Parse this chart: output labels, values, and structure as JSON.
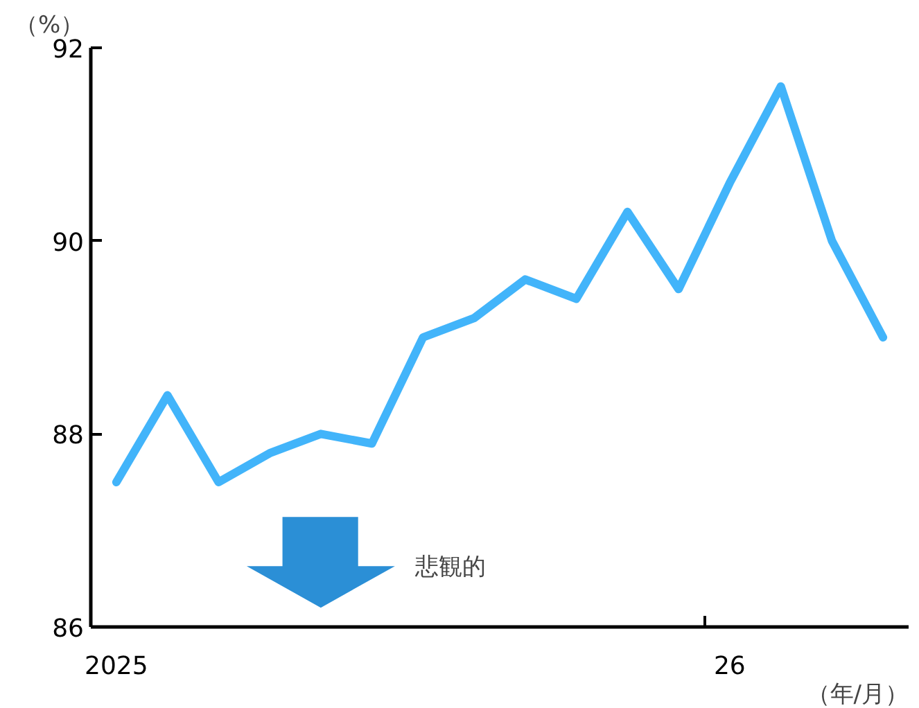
{
  "chart_data": {
    "type": "line",
    "ylabel": "（%）",
    "xlabel": "（年/月）",
    "categories": [
      "2025",
      null,
      null,
      null,
      null,
      null,
      null,
      null,
      null,
      null,
      null,
      null,
      "26",
      null,
      null,
      null
    ],
    "series": [
      {
        "color": "#42b4fa",
        "values": [
          87.5,
          88.4,
          87.5,
          87.8,
          88.0,
          87.9,
          89.0,
          89.2,
          89.6,
          89.4,
          90.3,
          89.5,
          90.6,
          91.6,
          90.0,
          89.0
        ]
      }
    ],
    "ylim": [
      86,
      92
    ],
    "yticks": [
      86,
      88,
      90,
      92
    ],
    "grid": false,
    "marker": "none",
    "line_style": "solid",
    "annotations": [
      "悲観的"
    ]
  }
}
